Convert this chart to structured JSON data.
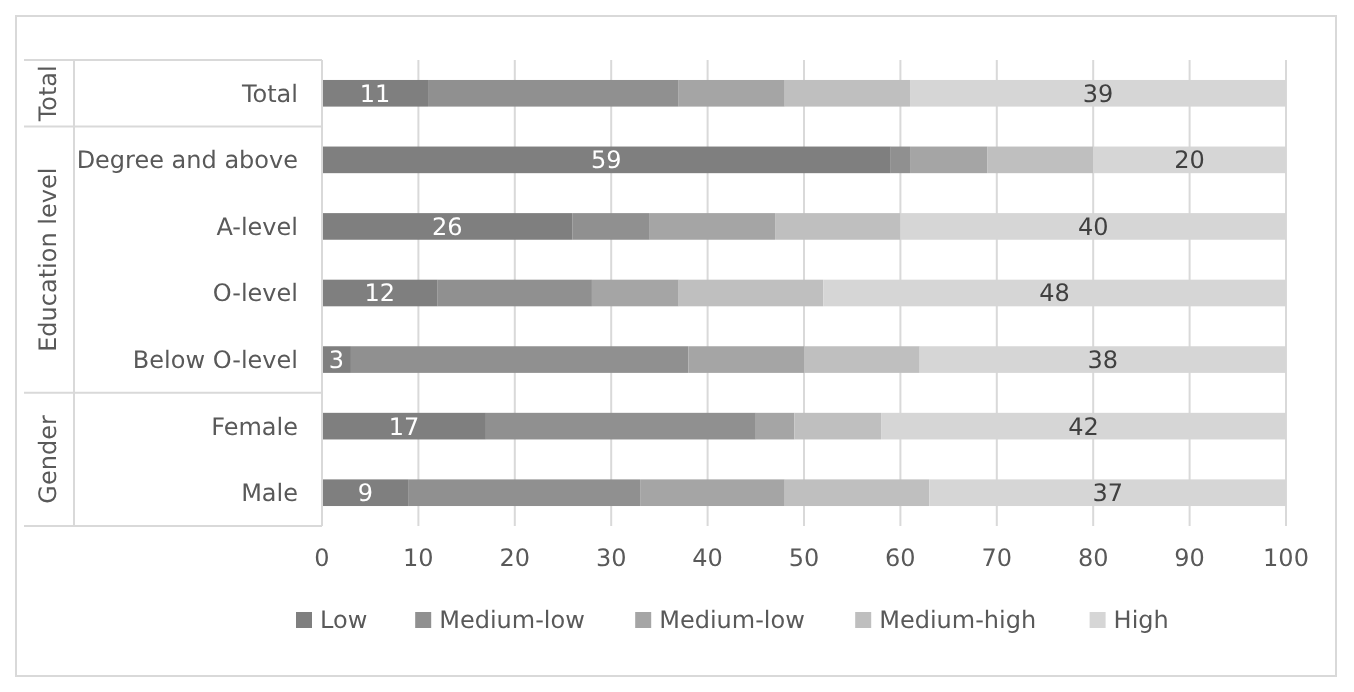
{
  "chart_data": {
    "type": "bar",
    "orientation": "horizontal",
    "stacked": true,
    "categories": [
      "Total",
      "Degree and above",
      "A-level",
      "O-level",
      "Below O-level",
      "Female",
      "Male"
    ],
    "series": [
      {
        "name": "Low",
        "color": "#7f7f7f",
        "values": [
          11,
          59,
          26,
          12,
          3,
          17,
          9
        ],
        "value_labels": [
          "11",
          "59",
          "26",
          "12",
          "3",
          "17",
          "9"
        ]
      },
      {
        "name": "Medium-low",
        "color": "#909090",
        "values": [
          26,
          2,
          8,
          16,
          35,
          28,
          24
        ]
      },
      {
        "name": "Medium-low",
        "color": "#a5a5a5",
        "values": [
          11,
          8,
          13,
          9,
          12,
          4,
          15
        ]
      },
      {
        "name": "Medium-high",
        "color": "#bfbfbf",
        "values": [
          13,
          11,
          13,
          15,
          12,
          9,
          15
        ]
      },
      {
        "name": "High",
        "color": "#d6d6d6",
        "values": [
          39,
          20,
          40,
          48,
          38,
          42,
          37
        ],
        "value_labels": [
          "39",
          "20",
          "40",
          "48",
          "38",
          "42",
          "37"
        ]
      }
    ],
    "xlim": [
      0,
      100
    ],
    "xticks": [
      0,
      10,
      20,
      30,
      40,
      50,
      60,
      70,
      80,
      90,
      100
    ],
    "grid": "x",
    "legend": "bottom",
    "annotations": [
      "Total",
      "Education level",
      "Gender"
    ]
  }
}
